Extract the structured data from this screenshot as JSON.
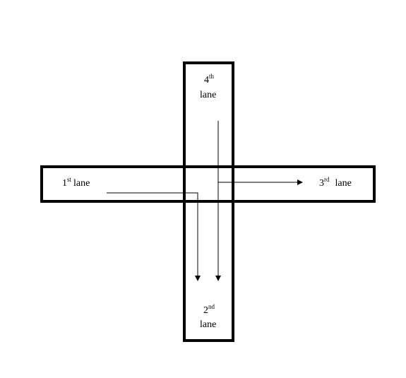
{
  "diagram": {
    "lanes": {
      "first": {
        "num": "1",
        "suffix": "st",
        "word": "lane"
      },
      "second": {
        "num": "2",
        "suffix": "nd",
        "word": "lane"
      },
      "third": {
        "num": "3",
        "suffix": "rd",
        "word": "lane"
      },
      "fourth": {
        "num": "4",
        "suffix": "th",
        "word": "lane"
      }
    },
    "colors": {
      "stroke": "#000000",
      "background": "#ffffff"
    }
  }
}
